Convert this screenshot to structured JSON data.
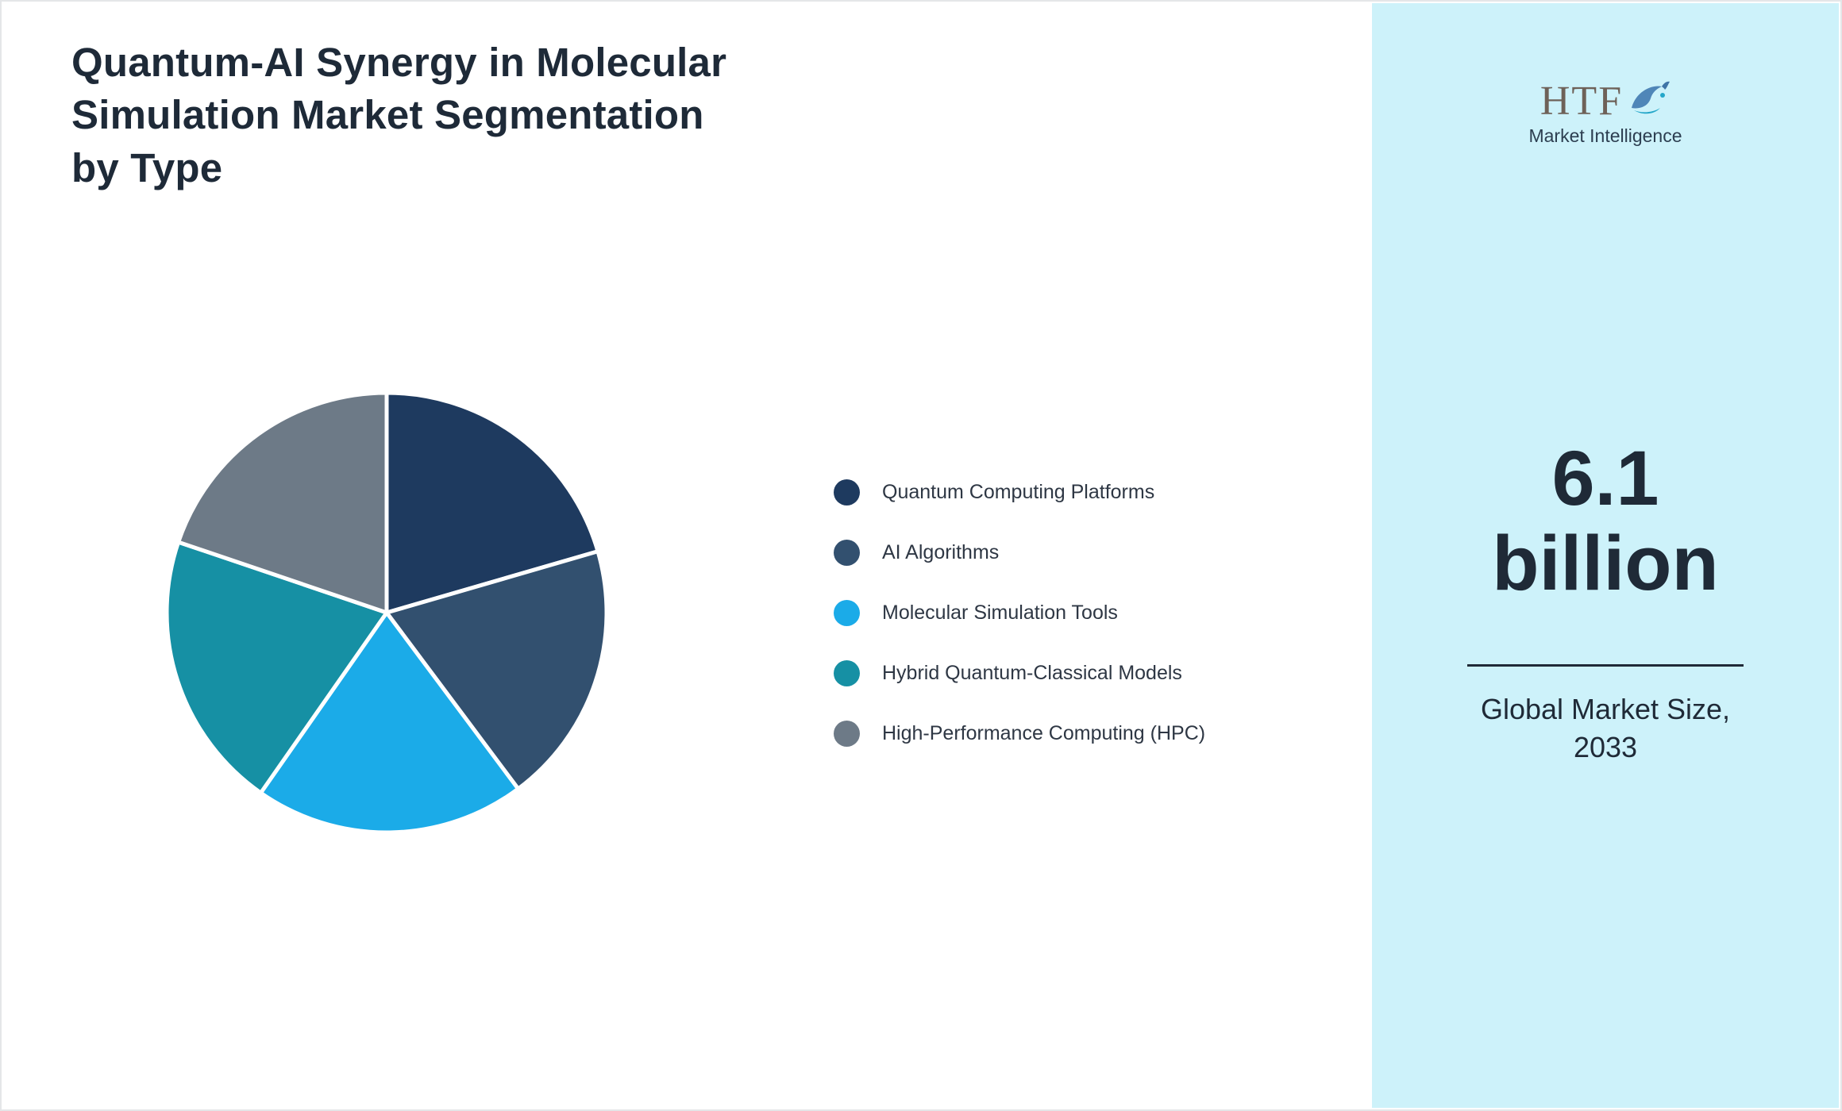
{
  "header": {
    "title_line1": "Quantum-AI Synergy in Molecular",
    "title_line2": "Simulation Market Segmentation",
    "title_line3": "by Type"
  },
  "chart_data": {
    "type": "pie",
    "title": "Quantum-AI Synergy in Molecular Simulation Market Segmentation by Type",
    "labels": [
      "Quantum Computing Platforms",
      "AI Algorithms",
      "Molecular Simulation Tools",
      "Hybrid Quantum-Classical Models",
      "High-Performance Computing (HPC)"
    ],
    "values": [
      20.5,
      19.3,
      19.9,
      20.5,
      19.8
    ],
    "colors": [
      "#1e3a5f",
      "#32506f",
      "#1babe8",
      "#1690a4",
      "#6d7a87"
    ],
    "start_angle": "top",
    "direction": "clockwise",
    "legend_position": "right",
    "data_labels": false
  },
  "sidebar": {
    "background": "#cdf2fa",
    "logo": {
      "text": "HTF",
      "subtext": "Market Intelligence"
    },
    "value_line1": "6.1",
    "value_line2": "billion",
    "caption_line1": "Global Market Size,",
    "caption_line2": "2033"
  }
}
